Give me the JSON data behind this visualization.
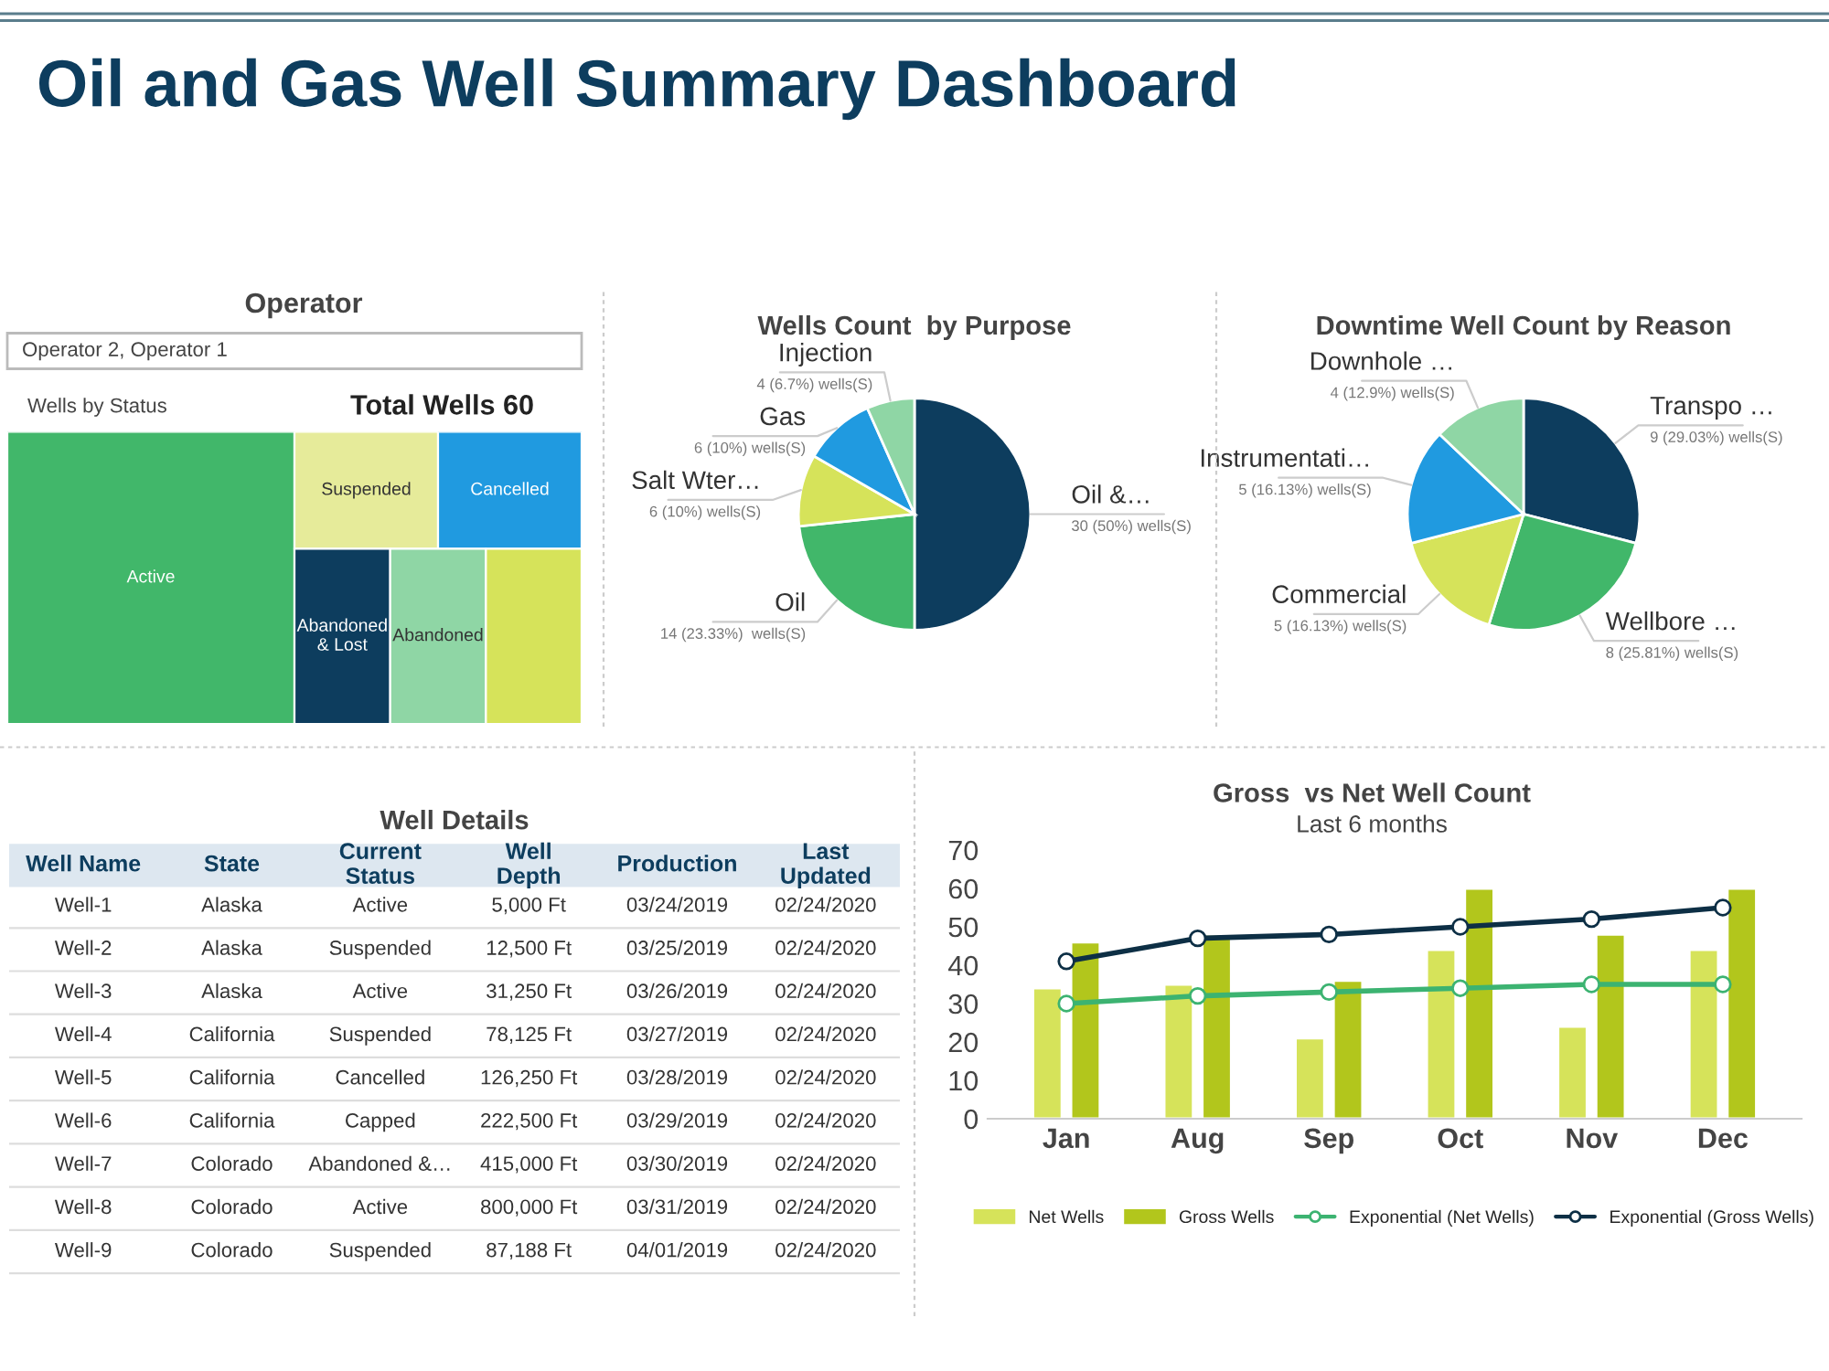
{
  "chart_data": [
    {
      "type": "other",
      "title": "Operator",
      "subtitle": "Wells by Status",
      "annotations": [
        "Oil and Gas Well Summary Dashboard",
        "Operator 2, Operator 1",
        "Total Wells 60"
      ],
      "categories": [
        "Active",
        "Suspended",
        "Cancelled",
        "Abandoned\n& Lost",
        "Abandoned",
        null
      ],
      "colors": [
        "#41b76a",
        "#e6eb9a",
        "#209ae0",
        "#0d3d5e",
        "#8fd6a5",
        "#d6e35a"
      ]
    },
    {
      "type": "pie",
      "title": "Wells Count  by Purpose",
      "categories": [
        "Oil &…",
        "Oil",
        "Salt Wter…",
        "Gas",
        "Injection"
      ],
      "values": [
        30,
        14,
        6,
        6,
        4
      ],
      "value_labels": [
        "30 (50%) wells(S)",
        "14 (23.33%)  wells(S)",
        "6 (10%) wells(S)",
        "6 (10%) wells(S)",
        "4 (6.7%) wells(S)"
      ],
      "colors": [
        "#0d3d5e",
        "#41b76a",
        "#d6e35a",
        "#209ae0",
        "#8fd6a5"
      ]
    },
    {
      "type": "pie",
      "title": "Downtime Well Count by Reason",
      "categories": [
        "Transpo …",
        "Wellbore …",
        "Commercial",
        "Instrumentati…",
        "Downhole …"
      ],
      "values": [
        9,
        8,
        5,
        5,
        4
      ],
      "value_labels": [
        "9 (29.03%) wells(S)",
        "8 (25.81%) wells(S)",
        "5 (16.13%) wells(S)",
        "5 (16.13%) wells(S)",
        "4 (12.9%) wells(S)"
      ],
      "colors": [
        "#0d3d5e",
        "#41b76a",
        "#d6e35a",
        "#209ae0",
        "#8fd6a5"
      ]
    },
    {
      "type": "other",
      "title": "Well Details",
      "categories": [
        "Well Name",
        "State",
        "Current\nStatus",
        "Well\nDepth",
        "Production",
        "Last\nUpdated"
      ],
      "cell_labels": [
        [
          "Well-1",
          "Alaska",
          "Active",
          "5,000 Ft",
          "03/24/2019",
          "02/24/2020"
        ],
        [
          "Well-2",
          "Alaska",
          "Suspended",
          "12,500 Ft",
          "03/25/2019",
          "02/24/2020"
        ],
        [
          "Well-3",
          "Alaska",
          "Active",
          "31,250 Ft",
          "03/26/2019",
          "02/24/2020"
        ],
        [
          "Well-4",
          "California",
          "Suspended",
          "78,125 Ft",
          "03/27/2019",
          "02/24/2020"
        ],
        [
          "Well-5",
          "California",
          "Cancelled",
          "126,250 Ft",
          "03/28/2019",
          "02/24/2020"
        ],
        [
          "Well-6",
          "California",
          "Capped",
          "222,500 Ft",
          "03/29/2019",
          "02/24/2020"
        ],
        [
          "Well-7",
          "Colorado",
          "Abandoned &…",
          "415,000 Ft",
          "03/30/2019",
          "02/24/2020"
        ],
        [
          "Well-8",
          "Colorado",
          "Active",
          "800,000 Ft",
          "03/31/2019",
          "02/24/2020"
        ],
        [
          "Well-9",
          "Colorado",
          "Suspended",
          "87,188 Ft",
          "04/01/2019",
          "02/24/2020"
        ]
      ]
    },
    {
      "type": "bar",
      "title": "Gross  vs Net Well Count",
      "subtitle": "Last 6 months",
      "categories": [
        "Jan",
        "Aug",
        "Sep",
        "Oct",
        "Nov",
        "Dec"
      ],
      "ylim": [
        0,
        70
      ],
      "yticks": [
        0,
        10,
        20,
        30,
        40,
        50,
        60,
        70
      ],
      "legend": "bottom",
      "marker": "circle",
      "series": [
        {
          "name": "Net Wells",
          "color": "#d6e35a",
          "values": [
            34,
            35,
            21,
            44,
            24,
            44
          ]
        },
        {
          "name": "Gross Wells",
          "color": "#b2c61c",
          "values": [
            46,
            48,
            36,
            60,
            48,
            60
          ]
        },
        {
          "name": "Exponential (Net Wells)",
          "type": "line",
          "color": "#3cb371",
          "values": [
            30,
            32,
            33,
            34,
            35,
            35
          ]
        },
        {
          "name": "Exponential (Gross Wells)",
          "type": "line",
          "color": "#0d2f45",
          "values": [
            41,
            47,
            48,
            50,
            52,
            55
          ]
        }
      ]
    }
  ]
}
